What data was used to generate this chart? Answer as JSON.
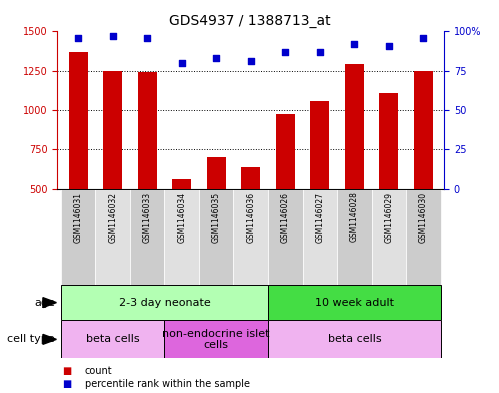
{
  "title": "GDS4937 / 1388713_at",
  "samples": [
    "GSM1146031",
    "GSM1146032",
    "GSM1146033",
    "GSM1146034",
    "GSM1146035",
    "GSM1146036",
    "GSM1146026",
    "GSM1146027",
    "GSM1146028",
    "GSM1146029",
    "GSM1146030"
  ],
  "counts": [
    1370,
    1250,
    1245,
    560,
    700,
    635,
    975,
    1055,
    1290,
    1110,
    1250
  ],
  "percentiles": [
    96,
    97,
    96,
    80,
    83,
    81,
    87,
    87,
    92,
    91,
    96
  ],
  "ylim_left": [
    500,
    1500
  ],
  "ylim_right": [
    0,
    100
  ],
  "yticks_left": [
    500,
    750,
    1000,
    1250,
    1500
  ],
  "yticks_right": [
    0,
    25,
    50,
    75,
    100
  ],
  "bar_color": "#cc0000",
  "dot_color": "#0000cc",
  "age_groups": [
    {
      "label": "2-3 day neonate",
      "start": 0,
      "end": 6,
      "color": "#b3ffb3"
    },
    {
      "label": "10 week adult",
      "start": 6,
      "end": 11,
      "color": "#44dd44"
    }
  ],
  "cell_type_groups": [
    {
      "label": "beta cells",
      "start": 0,
      "end": 3,
      "color": "#f0b3f0"
    },
    {
      "label": "non-endocrine islet\ncells",
      "start": 3,
      "end": 6,
      "color": "#dd66dd"
    },
    {
      "label": "beta cells",
      "start": 6,
      "end": 11,
      "color": "#f0b3f0"
    }
  ],
  "legend_items": [
    {
      "color": "#cc0000",
      "label": "count"
    },
    {
      "color": "#0000cc",
      "label": "percentile rank within the sample"
    }
  ],
  "title_fontsize": 10,
  "tick_fontsize": 7,
  "label_fontsize": 8,
  "annot_fontsize": 8
}
